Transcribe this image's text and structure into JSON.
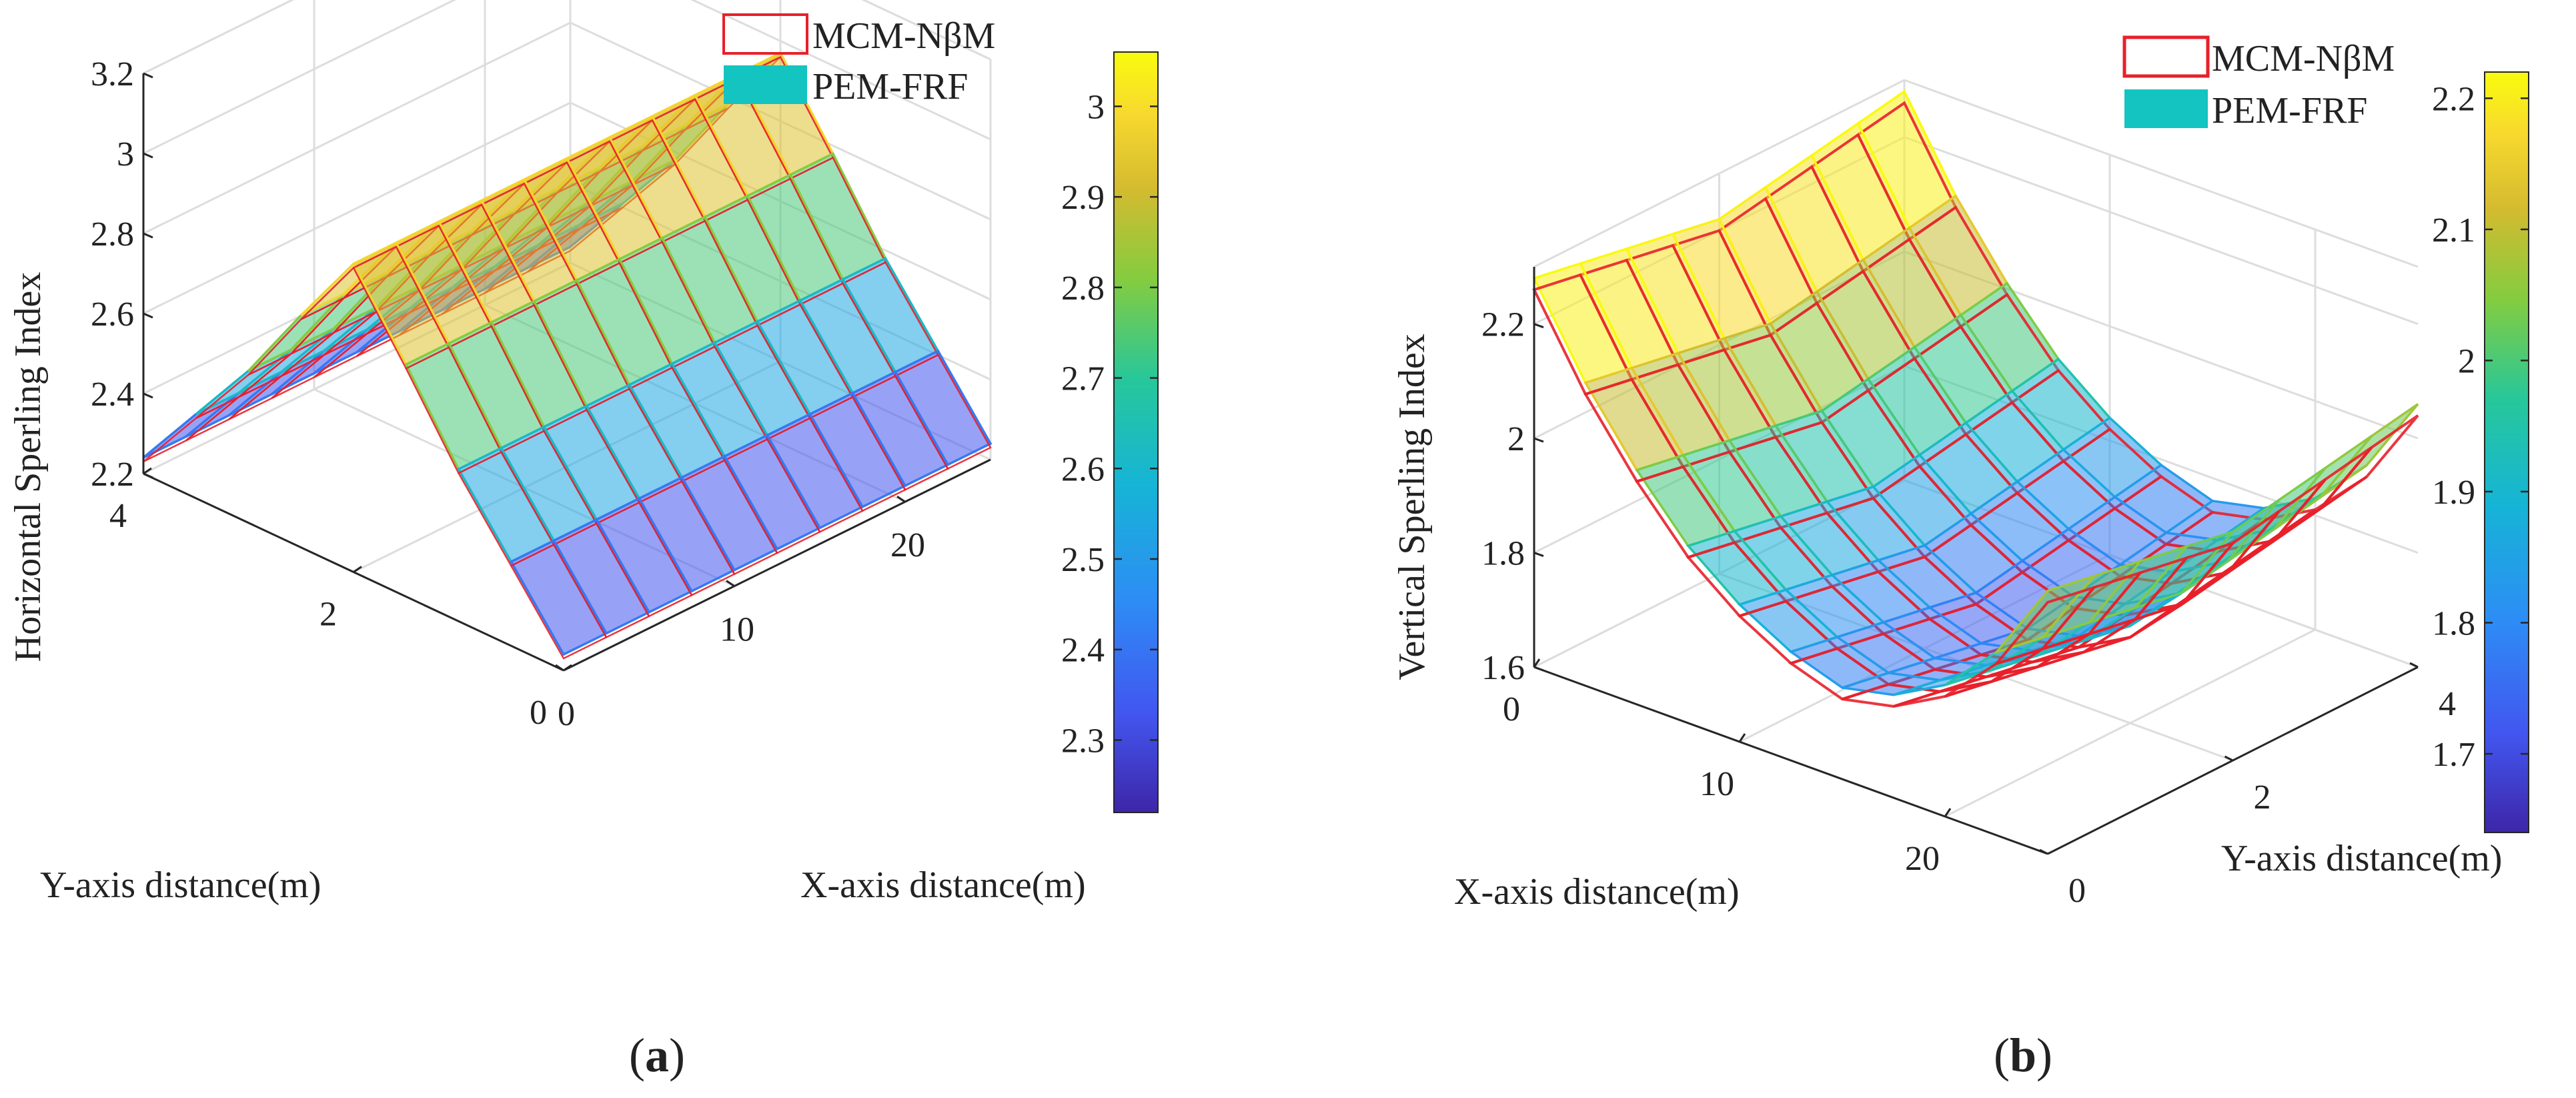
{
  "colors": {
    "mcm_line": "#e8202a",
    "pem_fill": "#14c4c0",
    "axis": "#262626",
    "grid": "#dddddd",
    "colormap": [
      "#3e26a8",
      "#4256f0",
      "#2d8df5",
      "#16b4d6",
      "#27c79a",
      "#83cc40",
      "#d4bb30",
      "#f8d92e",
      "#f9fb0e"
    ]
  },
  "chart_data": [
    {
      "id": "a",
      "type": "surface3d",
      "caption_letter": "a",
      "caption_left": "(",
      "caption_right": ")",
      "zlabel": "Horizontal Sperling Index",
      "xlabel": "X-axis distance(m)",
      "ylabel": "Y-axis distance(m)",
      "xlim": [
        0,
        25
      ],
      "ylim": [
        0,
        4
      ],
      "zlim": [
        2.2,
        3.2
      ],
      "x_ticks": [
        "0",
        "10",
        "20"
      ],
      "x_tick_values": [
        0,
        10,
        20
      ],
      "y_ticks": [
        "0",
        "2",
        "4"
      ],
      "y_tick_values": [
        0,
        2,
        4
      ],
      "z_ticks": [
        "2.2",
        "2.4",
        "2.6",
        "2.8",
        "3",
        "3.2"
      ],
      "z_tick_values": [
        2.2,
        2.4,
        2.6,
        2.8,
        3.0,
        3.2
      ],
      "colorbar": {
        "range": [
          2.22,
          3.06
        ],
        "ticks": [
          "2.3",
          "2.4",
          "2.5",
          "2.6",
          "2.7",
          "2.8",
          "2.9",
          "3"
        ],
        "tick_values": [
          2.3,
          2.4,
          2.5,
          2.6,
          2.7,
          2.8,
          2.9,
          3.0
        ]
      },
      "legend": [
        "MCM-NβM",
        "PEM-FRF"
      ],
      "x_grid": [
        0,
        2.5,
        5,
        7.5,
        10,
        12.5,
        15,
        17.5,
        20,
        22.5,
        25
      ],
      "y_grid": [
        0,
        0.5,
        1,
        1.5,
        2,
        2.5,
        3,
        3.5,
        4
      ],
      "series": [
        {
          "name": "PEM-FRF",
          "z_of_y": [
            2.24,
            2.41,
            2.58,
            2.78,
            2.97,
            2.78,
            2.58,
            2.41,
            2.24
          ],
          "z_scale_x": [
            1.0,
            1.0,
            1.0,
            1.0,
            1.0,
            1.0,
            1.0,
            1.0,
            1.0,
            1.0,
            1.0
          ]
        },
        {
          "name": "MCM-NβM",
          "z_of_y": [
            2.23,
            2.4,
            2.57,
            2.77,
            2.96,
            2.77,
            2.57,
            2.4,
            2.23
          ],
          "z_scale_x": [
            1.0,
            1.0,
            1.0,
            1.0,
            1.0,
            1.0,
            1.0,
            1.0,
            1.0,
            1.0,
            1.0
          ]
        }
      ]
    },
    {
      "id": "b",
      "type": "surface3d",
      "caption_letter": "b",
      "caption_left": "(",
      "caption_right": ")",
      "zlabel": "Vertical Sperling Index",
      "xlabel": "X-axis distance(m)",
      "ylabel": "Y-axis distance(m)",
      "xlim": [
        0,
        25
      ],
      "ylim": [
        0,
        4
      ],
      "zlim": [
        1.6,
        2.3
      ],
      "x_ticks": [
        "0",
        "10",
        "20"
      ],
      "x_tick_values": [
        0,
        10,
        20
      ],
      "y_ticks": [
        "0",
        "2",
        "4"
      ],
      "y_tick_values": [
        0,
        2,
        4
      ],
      "z_ticks": [
        "1.6",
        "1.8",
        "2",
        "2.2"
      ],
      "z_tick_values": [
        1.6,
        1.8,
        2.0,
        2.2
      ],
      "colorbar": {
        "range": [
          1.64,
          2.22
        ],
        "ticks": [
          "1.7",
          "1.8",
          "1.9",
          "2",
          "2.1",
          "2.2"
        ],
        "tick_values": [
          1.7,
          1.8,
          1.9,
          2.0,
          2.1,
          2.2
        ]
      },
      "legend": [
        "MCM-NβM",
        "PEM-FRF"
      ],
      "x_grid": [
        0,
        2.5,
        5,
        7.5,
        10,
        12.5,
        15,
        17.5,
        20,
        22.5,
        25
      ],
      "y_grid": [
        0,
        0.5,
        1,
        1.5,
        2,
        2.5,
        3,
        3.5,
        4
      ],
      "series": [
        {
          "name": "PEM-FRF",
          "z_of_x": [
            2.22,
            2.07,
            1.95,
            1.85,
            1.78,
            1.73,
            1.7,
            1.72,
            1.77,
            1.86,
            2.0
          ],
          "y_gain": [
            0.06,
            0.045,
            0.03,
            0.015,
            0.0,
            0.015,
            0.03,
            0.045,
            0.06
          ]
        },
        {
          "name": "MCM-NβM",
          "z_of_x": [
            2.2,
            2.05,
            1.93,
            1.83,
            1.76,
            1.71,
            1.68,
            1.7,
            1.75,
            1.84,
            1.98
          ],
          "y_gain": [
            0.06,
            0.045,
            0.03,
            0.015,
            0.0,
            0.015,
            0.03,
            0.045,
            0.06
          ]
        }
      ]
    }
  ]
}
